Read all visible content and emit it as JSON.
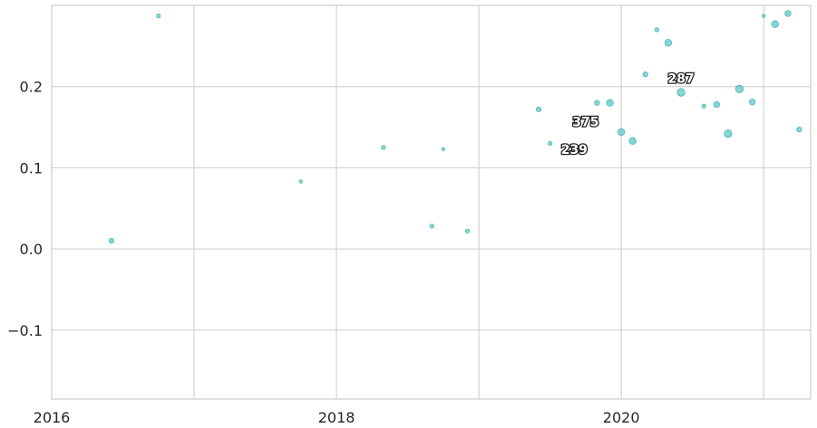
{
  "chart_data": {
    "type": "scatter",
    "title": "",
    "xlabel": "",
    "ylabel": "",
    "xlim": [
      2016.0,
      2021.33
    ],
    "ylim": [
      -0.185,
      0.3
    ],
    "grid": true,
    "point_color": "#5bc8c8",
    "x_ticks": [
      {
        "value": 2016,
        "label": "2016"
      },
      {
        "value": 2017,
        "label": ""
      },
      {
        "value": 2018,
        "label": "2018"
      },
      {
        "value": 2019,
        "label": ""
      },
      {
        "value": 2020,
        "label": "2020"
      },
      {
        "value": 2021,
        "label": ""
      }
    ],
    "y_ticks": [
      {
        "value": -0.1,
        "label": "−0.1"
      },
      {
        "value": 0.0,
        "label": "0.0"
      },
      {
        "value": 0.1,
        "label": "0.1"
      },
      {
        "value": 0.2,
        "label": "0.2"
      }
    ],
    "points": [
      {
        "x": 2016.42,
        "y": 0.01,
        "size": 4
      },
      {
        "x": 2016.75,
        "y": 0.287,
        "size": 3
      },
      {
        "x": 2017.75,
        "y": 0.083,
        "size": 2
      },
      {
        "x": 2018.33,
        "y": 0.125,
        "size": 3
      },
      {
        "x": 2018.67,
        "y": 0.028,
        "size": 3
      },
      {
        "x": 2018.75,
        "y": 0.123,
        "size": 2
      },
      {
        "x": 2018.92,
        "y": 0.022,
        "size": 3
      },
      {
        "x": 2019.42,
        "y": 0.172,
        "size": 4
      },
      {
        "x": 2019.5,
        "y": 0.13,
        "size": 3
      },
      {
        "x": 2019.83,
        "y": 0.18,
        "size": 4
      },
      {
        "x": 2019.92,
        "y": 0.18,
        "size": 6
      },
      {
        "x": 2020.0,
        "y": 0.144,
        "size": 6
      },
      {
        "x": 2020.08,
        "y": 0.133,
        "size": 6
      },
      {
        "x": 2020.17,
        "y": 0.215,
        "size": 4
      },
      {
        "x": 2020.25,
        "y": 0.27,
        "size": 3
      },
      {
        "x": 2020.33,
        "y": 0.254,
        "size": 6
      },
      {
        "x": 2020.42,
        "y": 0.193,
        "size": 7
      },
      {
        "x": 2020.58,
        "y": 0.176,
        "size": 3
      },
      {
        "x": 2020.67,
        "y": 0.178,
        "size": 5
      },
      {
        "x": 2020.75,
        "y": 0.142,
        "size": 7
      },
      {
        "x": 2020.83,
        "y": 0.197,
        "size": 7
      },
      {
        "x": 2020.92,
        "y": 0.181,
        "size": 5
      },
      {
        "x": 2021.0,
        "y": 0.287,
        "size": 2
      },
      {
        "x": 2021.08,
        "y": 0.277,
        "size": 6
      },
      {
        "x": 2021.17,
        "y": 0.29,
        "size": 5
      },
      {
        "x": 2021.25,
        "y": 0.147,
        "size": 4
      }
    ],
    "annotations": [
      {
        "text": "287",
        "x": 2020.42,
        "y": 0.21
      },
      {
        "text": "375",
        "x": 2019.75,
        "y": 0.157
      },
      {
        "text": "239",
        "x": 2019.67,
        "y": 0.123
      }
    ]
  }
}
